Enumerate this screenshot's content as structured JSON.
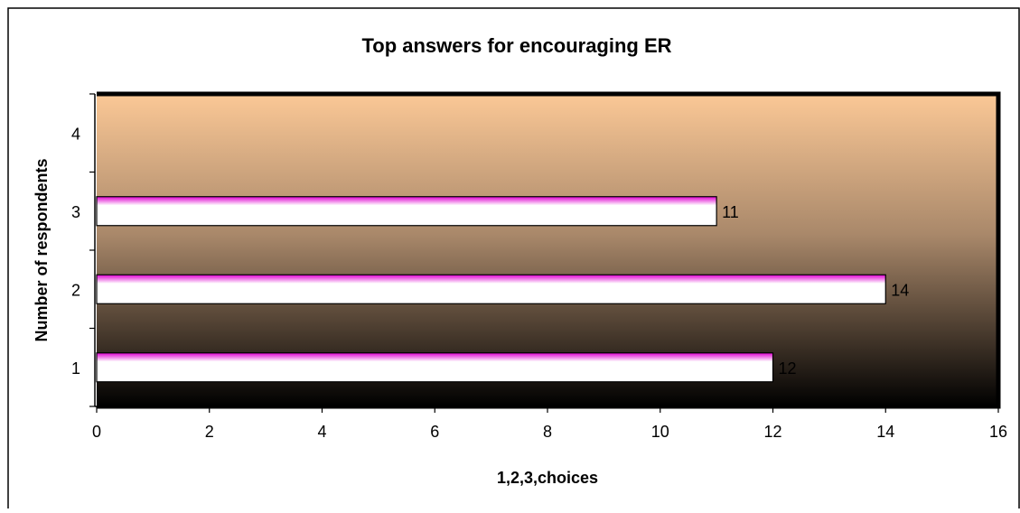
{
  "chart_data": {
    "type": "bar",
    "orientation": "horizontal",
    "title": "Top answers for encouraging ER",
    "xlabel": "1,2,3,choices",
    "ylabel": "Number of respondents",
    "categories": [
      "1",
      "2",
      "3",
      "4"
    ],
    "values": [
      12,
      14,
      11,
      null
    ],
    "data_labels": [
      "12",
      "14",
      "11",
      ""
    ],
    "xlim": [
      0,
      16
    ],
    "xticks": [
      "0",
      "2",
      "4",
      "6",
      "8",
      "10",
      "12",
      "14",
      "16"
    ],
    "grid": false,
    "legend": "none",
    "colors": {
      "plot_bg_top": "#fbc896",
      "plot_bg_mid": "#a9886a",
      "plot_bg_bottom": "#000000",
      "bar_top": "#e000d0",
      "bar_light": "#ffffff",
      "bar_edge": "#000000",
      "frame": "#000000"
    }
  }
}
